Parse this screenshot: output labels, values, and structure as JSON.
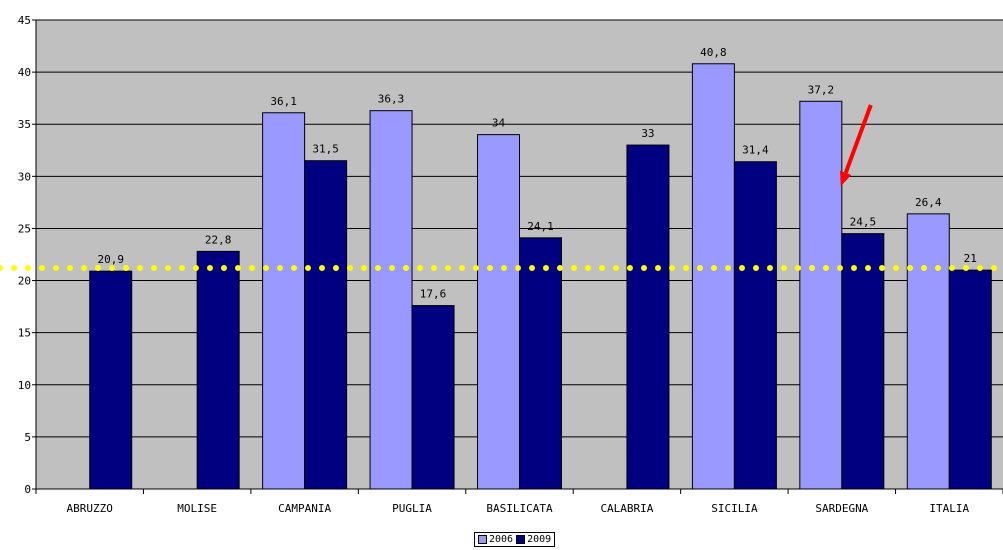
{
  "chart_data": {
    "type": "bar",
    "title": "",
    "xlabel": "",
    "ylabel": "",
    "categories": [
      "ABRUZZO",
      "MOLISE",
      "CAMPANIA",
      "PUGLIA",
      "BASILICATA",
      "CALABRIA",
      "SICILIA",
      "SARDEGNA",
      "ITALIA"
    ],
    "series": [
      {
        "name": "2006",
        "color": "#9999ff",
        "values": [
          null,
          null,
          36.1,
          36.3,
          34,
          null,
          40.8,
          37.2,
          26.4
        ]
      },
      {
        "name": "2009",
        "color": "#000080",
        "values": [
          20.9,
          22.8,
          31.5,
          17.6,
          24.1,
          33,
          31.4,
          24.5,
          21
        ]
      }
    ],
    "data_labels": {
      "2006": [
        null,
        null,
        "36,1",
        "36,3",
        "34",
        null,
        "40,8",
        "37,2",
        "26,4"
      ],
      "2009": [
        "20,9",
        "22,8",
        "31,5",
        "17,6",
        "24,1",
        "33",
        "31,4",
        "24,5",
        "21"
      ]
    },
    "ylim": [
      0,
      45
    ],
    "yticks": [
      "0",
      "5",
      "10",
      "15",
      "20",
      "25",
      "30",
      "35",
      "40",
      "45"
    ],
    "grid": true,
    "plot_background": "#c0c0c0",
    "reference_line": {
      "value": 21.2,
      "color": "#ffff00",
      "style": "dotted"
    },
    "annotation": {
      "type": "arrow",
      "color": "#ff0000",
      "target_category": "SARDEGNA",
      "target_series": "2009"
    },
    "legend": {
      "position": "bottom",
      "entries": [
        "2006",
        "2009"
      ]
    }
  }
}
